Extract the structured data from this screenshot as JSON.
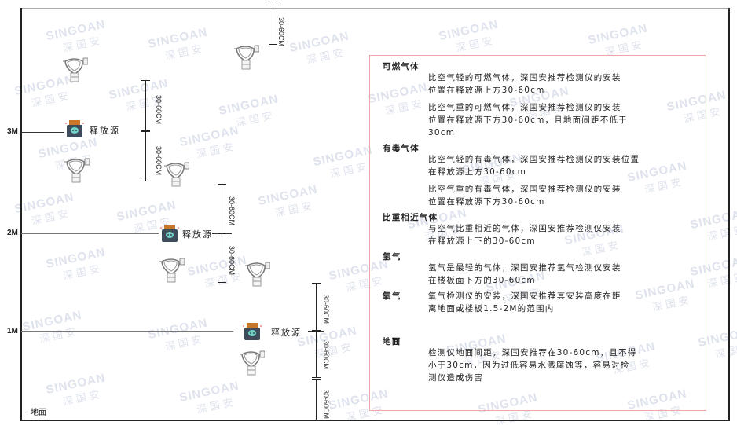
{
  "watermark": {
    "brand": "SINGOAN",
    "cn": "深国安"
  },
  "levels": {
    "l3": "3M",
    "l2": "2M",
    "l1": "1M",
    "ground": "地面"
  },
  "source_label": "释放源",
  "dimension_label": "30-60CM",
  "colors": {
    "frame_pink": "#f2a5a8",
    "source_body": "#3d4b5a",
    "source_cap": "#c8772a",
    "skull": "#6fd3c8"
  },
  "panel": {
    "sections": [
      {
        "title": "可燃气体",
        "paras": [
          [
            "比空气轻的可燃气体，深国安推荐检测仪的安装",
            "位置在释放源上方30-60cm"
          ],
          [
            "比空气重的可燃气体，深国安推荐检测仪的安装",
            "位置在释放源下方30-60cm，且地面间距不低于",
            "30cm"
          ]
        ]
      },
      {
        "title": "有毒气体",
        "paras": [
          [
            "比空气轻的有毒气体，深国安推荐检测仪的安装位置",
            "在释放源上方30-60cm"
          ],
          [
            "比空气重的有毒气体，深国安推荐检测仪的安装",
            "位置在释放源下方30-60cm"
          ]
        ]
      },
      {
        "title": "比重相近气体",
        "paras": [
          [
            "与空气比重相近的气体，深国安推荐检测仪安装",
            "在释放源上下的30-60cm"
          ]
        ]
      },
      {
        "title": "氢气",
        "paras": [
          [
            "氢气是最轻的气体，深国安推荐氢气检测仪安装",
            "在楼板面下方的30-60cm"
          ]
        ]
      },
      {
        "title": "氧气",
        "paras": [
          [
            "氧气检测仪的安装，深国安推荐其安装高度在距",
            "离地面或楼板1.5-2M的范围内"
          ]
        ]
      },
      {
        "title": "地面",
        "paras": [
          [
            "检测仪地面间距，深国安推荐在30-60cm，且不得",
            "小于30cm，因为过低容易水溅腐蚀等，容易对检",
            "测仪造成伤害"
          ]
        ]
      }
    ]
  }
}
